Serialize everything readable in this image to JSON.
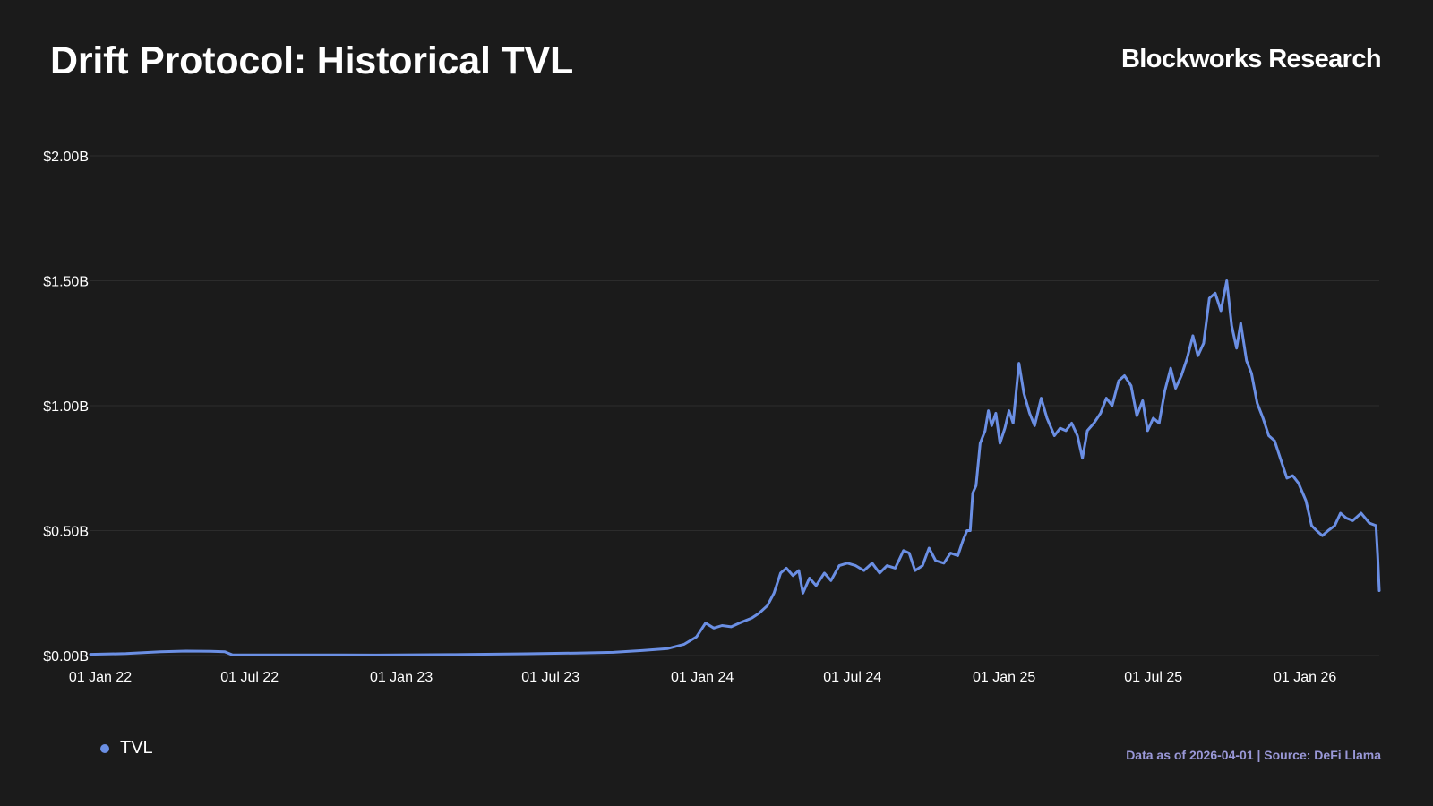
{
  "header": {
    "title": "Drift Protocol: Historical TVL",
    "brand": "Blockworks Research"
  },
  "footer": {
    "source": "Data as of 2026-04-01 | Source: DeFi Llama"
  },
  "colors": {
    "background": "#1b1b1b",
    "line": "#6b8fe4",
    "grid": "#2c2c2c",
    "source_text": "#9a98d8"
  },
  "chart_data": {
    "type": "line",
    "title": "Drift Protocol: Historical TVL",
    "xlabel": "",
    "ylabel": "",
    "ylim": [
      0,
      2000000000
    ],
    "yticks": [
      {
        "value": 0,
        "label": "$0.00B"
      },
      {
        "value": 500000000,
        "label": "$0.50B"
      },
      {
        "value": 1000000000,
        "label": "$1.00B"
      },
      {
        "value": 1500000000,
        "label": "$1.50B"
      },
      {
        "value": 2000000000,
        "label": "$2.00B"
      }
    ],
    "xlim": [
      "2021-12-20",
      "2026-04-01"
    ],
    "xticks": [
      {
        "date": "2022-01-01",
        "label": "01 Jan 22"
      },
      {
        "date": "2022-07-01",
        "label": "01 Jul 22"
      },
      {
        "date": "2023-01-01",
        "label": "01 Jan 23"
      },
      {
        "date": "2023-07-01",
        "label": "01 Jul 23"
      },
      {
        "date": "2024-01-01",
        "label": "01 Jan 24"
      },
      {
        "date": "2024-07-01",
        "label": "01 Jul 24"
      },
      {
        "date": "2025-01-01",
        "label": "01 Jan 25"
      },
      {
        "date": "2025-07-01",
        "label": "01 Jul 25"
      },
      {
        "date": "2026-01-01",
        "label": "01 Jan 26"
      }
    ],
    "grid": true,
    "legend": {
      "position": "bottom-left",
      "entries": [
        "TVL"
      ]
    },
    "series": [
      {
        "name": "TVL",
        "points": [
          [
            "2021-12-20",
            0.005
          ],
          [
            "2022-02-01",
            0.008
          ],
          [
            "2022-03-15",
            0.015
          ],
          [
            "2022-04-15",
            0.018
          ],
          [
            "2022-05-15",
            0.017
          ],
          [
            "2022-06-01",
            0.015
          ],
          [
            "2022-06-10",
            0.003
          ],
          [
            "2022-09-01",
            0.003
          ],
          [
            "2022-12-01",
            0.002
          ],
          [
            "2023-03-01",
            0.004
          ],
          [
            "2023-06-01",
            0.007
          ],
          [
            "2023-08-01",
            0.01
          ],
          [
            "2023-09-15",
            0.013
          ],
          [
            "2023-10-20",
            0.02
          ],
          [
            "2023-11-20",
            0.028
          ],
          [
            "2023-12-10",
            0.045
          ],
          [
            "2023-12-25",
            0.075
          ],
          [
            "2024-01-05",
            0.13
          ],
          [
            "2024-01-15",
            0.11
          ],
          [
            "2024-01-25",
            0.12
          ],
          [
            "2024-02-05",
            0.115
          ],
          [
            "2024-02-15",
            0.13
          ],
          [
            "2024-03-01",
            0.15
          ],
          [
            "2024-03-10",
            0.17
          ],
          [
            "2024-03-20",
            0.2
          ],
          [
            "2024-03-28",
            0.25
          ],
          [
            "2024-04-05",
            0.33
          ],
          [
            "2024-04-12",
            0.35
          ],
          [
            "2024-04-20",
            0.32
          ],
          [
            "2024-04-27",
            0.34
          ],
          [
            "2024-05-02",
            0.25
          ],
          [
            "2024-05-10",
            0.31
          ],
          [
            "2024-05-18",
            0.28
          ],
          [
            "2024-05-28",
            0.33
          ],
          [
            "2024-06-05",
            0.3
          ],
          [
            "2024-06-15",
            0.36
          ],
          [
            "2024-06-25",
            0.37
          ],
          [
            "2024-07-05",
            0.36
          ],
          [
            "2024-07-15",
            0.34
          ],
          [
            "2024-07-25",
            0.37
          ],
          [
            "2024-08-03",
            0.33
          ],
          [
            "2024-08-12",
            0.36
          ],
          [
            "2024-08-22",
            0.35
          ],
          [
            "2024-09-01",
            0.42
          ],
          [
            "2024-09-08",
            0.41
          ],
          [
            "2024-09-15",
            0.34
          ],
          [
            "2024-09-24",
            0.36
          ],
          [
            "2024-10-02",
            0.43
          ],
          [
            "2024-10-10",
            0.38
          ],
          [
            "2024-10-20",
            0.37
          ],
          [
            "2024-10-28",
            0.41
          ],
          [
            "2024-11-06",
            0.4
          ],
          [
            "2024-11-12",
            0.46
          ],
          [
            "2024-11-17",
            0.5
          ],
          [
            "2024-11-21",
            0.5
          ],
          [
            "2024-11-24",
            0.65
          ],
          [
            "2024-11-28",
            0.68
          ],
          [
            "2024-12-03",
            0.85
          ],
          [
            "2024-12-09",
            0.9
          ],
          [
            "2024-12-13",
            0.98
          ],
          [
            "2024-12-17",
            0.92
          ],
          [
            "2024-12-22",
            0.97
          ],
          [
            "2024-12-27",
            0.85
          ],
          [
            "2025-01-02",
            0.91
          ],
          [
            "2025-01-07",
            0.98
          ],
          [
            "2025-01-12",
            0.93
          ],
          [
            "2025-01-19",
            1.17
          ],
          [
            "2025-01-25",
            1.05
          ],
          [
            "2025-02-01",
            0.97
          ],
          [
            "2025-02-07",
            0.92
          ],
          [
            "2025-02-15",
            1.03
          ],
          [
            "2025-02-22",
            0.95
          ],
          [
            "2025-03-03",
            0.88
          ],
          [
            "2025-03-10",
            0.91
          ],
          [
            "2025-03-17",
            0.9
          ],
          [
            "2025-03-24",
            0.93
          ],
          [
            "2025-03-31",
            0.88
          ],
          [
            "2025-04-06",
            0.79
          ],
          [
            "2025-04-12",
            0.9
          ],
          [
            "2025-04-20",
            0.93
          ],
          [
            "2025-04-28",
            0.97
          ],
          [
            "2025-05-05",
            1.03
          ],
          [
            "2025-05-12",
            1.0
          ],
          [
            "2025-05-20",
            1.1
          ],
          [
            "2025-05-27",
            1.12
          ],
          [
            "2025-06-04",
            1.08
          ],
          [
            "2025-06-11",
            0.96
          ],
          [
            "2025-06-18",
            1.02
          ],
          [
            "2025-06-24",
            0.9
          ],
          [
            "2025-07-01",
            0.95
          ],
          [
            "2025-07-08",
            0.93
          ],
          [
            "2025-07-15",
            1.06
          ],
          [
            "2025-07-22",
            1.15
          ],
          [
            "2025-07-28",
            1.07
          ],
          [
            "2025-08-04",
            1.12
          ],
          [
            "2025-08-11",
            1.19
          ],
          [
            "2025-08-18",
            1.28
          ],
          [
            "2025-08-24",
            1.2
          ],
          [
            "2025-08-31",
            1.25
          ],
          [
            "2025-09-07",
            1.43
          ],
          [
            "2025-09-14",
            1.45
          ],
          [
            "2025-09-21",
            1.38
          ],
          [
            "2025-09-28",
            1.5
          ],
          [
            "2025-10-04",
            1.32
          ],
          [
            "2025-10-10",
            1.23
          ],
          [
            "2025-10-15",
            1.33
          ],
          [
            "2025-10-22",
            1.18
          ],
          [
            "2025-10-28",
            1.13
          ],
          [
            "2025-11-04",
            1.01
          ],
          [
            "2025-11-11",
            0.95
          ],
          [
            "2025-11-18",
            0.88
          ],
          [
            "2025-11-25",
            0.86
          ],
          [
            "2025-12-03",
            0.78
          ],
          [
            "2025-12-10",
            0.71
          ],
          [
            "2025-12-17",
            0.72
          ],
          [
            "2025-12-24",
            0.69
          ],
          [
            "2026-01-02",
            0.62
          ],
          [
            "2026-01-09",
            0.52
          ],
          [
            "2026-01-15",
            0.5
          ],
          [
            "2026-01-22",
            0.48
          ],
          [
            "2026-01-29",
            0.5
          ],
          [
            "2026-02-06",
            0.52
          ],
          [
            "2026-02-13",
            0.57
          ],
          [
            "2026-02-20",
            0.55
          ],
          [
            "2026-02-28",
            0.54
          ],
          [
            "2026-03-10",
            0.57
          ],
          [
            "2026-03-20",
            0.53
          ],
          [
            "2026-03-28",
            0.52
          ],
          [
            "2026-03-30",
            0.4
          ],
          [
            "2026-04-01",
            0.26
          ]
        ]
      }
    ]
  }
}
